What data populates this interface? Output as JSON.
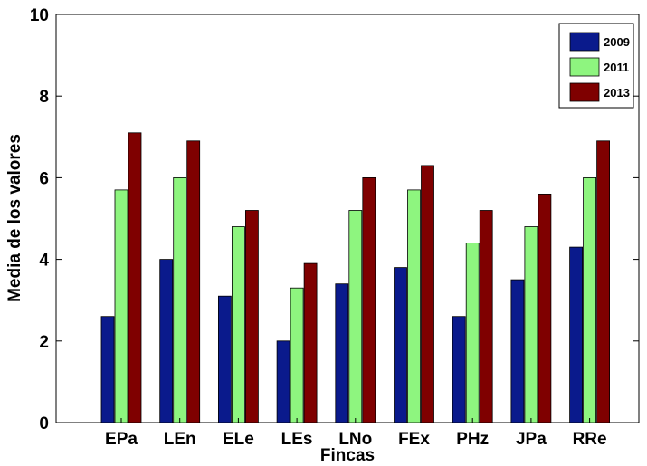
{
  "chart_data": {
    "type": "bar",
    "title": "",
    "xlabel": "Fincas",
    "ylabel": "Media de los valores",
    "categories": [
      "EPa",
      "LEn",
      "ELe",
      "LEs",
      "LNo",
      "FEx",
      "PHz",
      "JPa",
      "RRe"
    ],
    "series": [
      {
        "name": "2009",
        "color": "#0a1a8c",
        "values": [
          2.6,
          4.0,
          3.1,
          2.0,
          3.4,
          3.8,
          2.6,
          3.5,
          4.3
        ]
      },
      {
        "name": "2011",
        "color": "#8ef57f",
        "values": [
          5.7,
          6.0,
          4.8,
          3.3,
          5.2,
          5.7,
          4.4,
          4.8,
          6.0
        ]
      },
      {
        "name": "2013",
        "color": "#7f0000",
        "values": [
          7.1,
          6.9,
          5.2,
          3.9,
          6.0,
          6.3,
          5.2,
          5.6,
          6.9
        ]
      }
    ],
    "ylim": [
      0,
      10
    ],
    "yticks": [
      "0",
      "2",
      "4",
      "6",
      "8",
      "10"
    ],
    "grid": false,
    "legend_position": "top-right"
  }
}
